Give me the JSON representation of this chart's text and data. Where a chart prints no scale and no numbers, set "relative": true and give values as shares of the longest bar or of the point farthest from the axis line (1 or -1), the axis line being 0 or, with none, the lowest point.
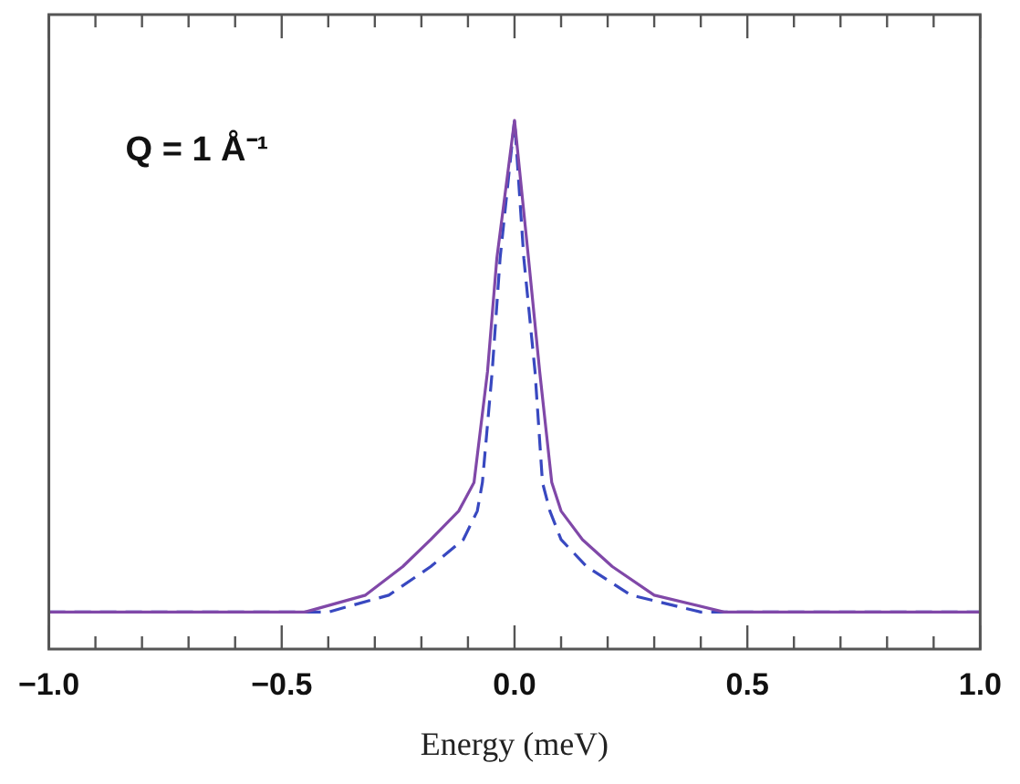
{
  "chart_data": {
    "type": "line",
    "relative": true,
    "xlabel": "Energy (meV)",
    "annotations": [
      "Q = 1 Å⁻¹"
    ],
    "xlim": [
      -1,
      1
    ],
    "xticks": [
      {
        "value": -1,
        "label": "−1.0"
      },
      {
        "value": -0.9,
        "label": null
      },
      {
        "value": -0.8,
        "label": null
      },
      {
        "value": -0.7,
        "label": null
      },
      {
        "value": -0.6,
        "label": null
      },
      {
        "value": -0.5,
        "label": "−0.5"
      },
      {
        "value": -0.4,
        "label": null
      },
      {
        "value": -0.3,
        "label": null
      },
      {
        "value": -0.2,
        "label": null
      },
      {
        "value": -0.1,
        "label": null
      },
      {
        "value": 0,
        "label": "0.0"
      },
      {
        "value": 0.1,
        "label": null
      },
      {
        "value": 0.2,
        "label": null
      },
      {
        "value": 0.3,
        "label": null
      },
      {
        "value": 0.4,
        "label": null
      },
      {
        "value": 0.5,
        "label": "0.5"
      },
      {
        "value": 0.6,
        "label": null
      },
      {
        "value": 0.7,
        "label": null
      },
      {
        "value": 0.8,
        "label": null
      },
      {
        "value": 0.9,
        "label": null
      },
      {
        "value": 1,
        "label": "1.0"
      }
    ],
    "legend": false,
    "grid": false,
    "marker": "none",
    "series": [
      {
        "color": "#8048a8",
        "line_style": "solid",
        "x": [
          -1,
          -0.45,
          -0.32,
          -0.24,
          -0.18,
          -0.12,
          -0.087,
          -0.058,
          -0.038,
          0,
          0.03,
          0.054,
          0.08,
          0.1,
          0.146,
          0.21,
          0.3,
          0.45,
          1
        ],
        "values": [
          0.07,
          0.07,
          0.102,
          0.156,
          0.207,
          0.261,
          0.315,
          0.525,
          0.739,
          1,
          0.739,
          0.525,
          0.315,
          0.261,
          0.207,
          0.156,
          0.102,
          0.07,
          0.07
        ]
      },
      {
        "color": "#3848c0",
        "line_style": "dashed",
        "x": [
          -1,
          -0.4,
          -0.27,
          -0.18,
          -0.11,
          -0.08,
          -0.069,
          -0.048,
          -0.031,
          0,
          0.02,
          0.044,
          0.06,
          0.076,
          0.1,
          0.155,
          0.25,
          0.4,
          1
        ],
        "values": [
          0.07,
          0.07,
          0.102,
          0.156,
          0.207,
          0.261,
          0.315,
          0.525,
          0.739,
          1,
          0.739,
          0.525,
          0.315,
          0.261,
          0.207,
          0.156,
          0.102,
          0.07,
          0.07
        ]
      }
    ]
  }
}
